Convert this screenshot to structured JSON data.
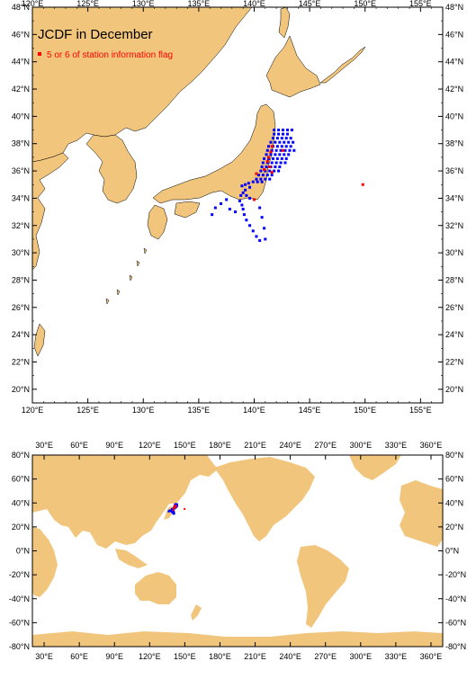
{
  "top_map": {
    "title": "JCDF in December",
    "legend_label": "5 or 6 of station information flag",
    "lon_ticks": [
      "120°E",
      "125°E",
      "130°E",
      "135°E",
      "140°E",
      "145°E",
      "150°E",
      "155°E"
    ],
    "lat_ticks": [
      "20°N",
      "22°N",
      "24°N",
      "26°N",
      "28°N",
      "30°N",
      "32°N",
      "34°N",
      "36°N",
      "38°N",
      "40°N",
      "42°N",
      "44°N",
      "46°N",
      "48°N"
    ],
    "lon_range": [
      120,
      157
    ],
    "lat_range": [
      19,
      48
    ]
  },
  "bottom_map": {
    "lon_ticks": [
      "30°E",
      "60°E",
      "90°E",
      "120°E",
      "150°E",
      "180°E",
      "210°E",
      "240°E",
      "270°E",
      "300°E",
      "330°E",
      "360°E"
    ],
    "lat_ticks": [
      "-80°N",
      "-60°N",
      "-40°N",
      "-20°N",
      "0°N",
      "20°N",
      "40°N",
      "60°N",
      "80°N"
    ],
    "lon_range": [
      20,
      370
    ],
    "lat_range": [
      -80,
      80
    ]
  },
  "colors": {
    "land": "#f2c57c",
    "station": "#0000ff",
    "flagged": "#ff0000"
  },
  "stations": [
    [
      141.8,
      39.0
    ],
    [
      142.2,
      39.0
    ],
    [
      142.6,
      39.0
    ],
    [
      143.0,
      39.0
    ],
    [
      143.4,
      39.0
    ],
    [
      141.8,
      38.7
    ],
    [
      142.2,
      38.7
    ],
    [
      142.6,
      38.7
    ],
    [
      143.0,
      38.7
    ],
    [
      141.7,
      38.4
    ],
    [
      142.1,
      38.4
    ],
    [
      142.5,
      38.4
    ],
    [
      142.9,
      38.4
    ],
    [
      143.3,
      38.4
    ],
    [
      141.5,
      38.1
    ],
    [
      141.9,
      38.1
    ],
    [
      142.3,
      38.1
    ],
    [
      142.7,
      38.1
    ],
    [
      143.1,
      38.1
    ],
    [
      143.5,
      38.1
    ],
    [
      141.3,
      37.8
    ],
    [
      141.7,
      37.8
    ],
    [
      142.1,
      37.8
    ],
    [
      142.5,
      37.8
    ],
    [
      142.9,
      37.8
    ],
    [
      143.3,
      37.8
    ],
    [
      141.2,
      37.5
    ],
    [
      141.6,
      37.5
    ],
    [
      142.0,
      37.5
    ],
    [
      142.4,
      37.5
    ],
    [
      142.8,
      37.5
    ],
    [
      143.2,
      37.5
    ],
    [
      143.6,
      37.5
    ],
    [
      141.1,
      37.2
    ],
    [
      141.5,
      37.2
    ],
    [
      141.9,
      37.2
    ],
    [
      142.3,
      37.2
    ],
    [
      142.7,
      37.2
    ],
    [
      143.1,
      37.2
    ],
    [
      140.9,
      36.9
    ],
    [
      141.3,
      36.9
    ],
    [
      141.7,
      36.9
    ],
    [
      142.1,
      36.9
    ],
    [
      142.5,
      36.9
    ],
    [
      142.9,
      36.9
    ],
    [
      140.8,
      36.6
    ],
    [
      141.2,
      36.6
    ],
    [
      141.6,
      36.6
    ],
    [
      142.0,
      36.6
    ],
    [
      142.4,
      36.6
    ],
    [
      142.8,
      36.6
    ],
    [
      140.7,
      36.3
    ],
    [
      141.1,
      36.3
    ],
    [
      141.5,
      36.3
    ],
    [
      141.9,
      36.3
    ],
    [
      142.3,
      36.3
    ],
    [
      140.6,
      36.0
    ],
    [
      141.0,
      36.0
    ],
    [
      141.4,
      36.0
    ],
    [
      141.8,
      36.0
    ],
    [
      142.2,
      36.0
    ],
    [
      140.4,
      35.7
    ],
    [
      140.8,
      35.7
    ],
    [
      141.2,
      35.7
    ],
    [
      141.6,
      35.7
    ],
    [
      140.2,
      35.4
    ],
    [
      140.6,
      35.4
    ],
    [
      141.0,
      35.4
    ],
    [
      141.4,
      35.4
    ],
    [
      139.9,
      35.2
    ],
    [
      140.3,
      35.2
    ],
    [
      140.7,
      35.2
    ],
    [
      139.5,
      35.1
    ],
    [
      139.2,
      35.0
    ],
    [
      138.9,
      34.9
    ],
    [
      139.6,
      34.8
    ],
    [
      139.2,
      34.6
    ],
    [
      139.0,
      34.4
    ],
    [
      138.8,
      34.2
    ],
    [
      139.3,
      34.2
    ],
    [
      139.6,
      34.0
    ],
    [
      138.7,
      33.8
    ],
    [
      138.9,
      33.5
    ],
    [
      139.0,
      33.2
    ],
    [
      139.1,
      32.8
    ],
    [
      139.3,
      32.4
    ],
    [
      139.6,
      32.0
    ],
    [
      139.9,
      31.6
    ],
    [
      140.2,
      31.2
    ],
    [
      140.5,
      30.9
    ],
    [
      136.5,
      33.3
    ],
    [
      137.0,
      33.6
    ],
    [
      137.5,
      33.9
    ],
    [
      136.2,
      32.8
    ],
    [
      137.8,
      33.2
    ],
    [
      138.3,
      33.0
    ],
    [
      141.0,
      31.0
    ],
    [
      140.9,
      31.8
    ],
    [
      140.7,
      32.6
    ],
    [
      140.5,
      33.3
    ]
  ],
  "flagged_stations": [
    [
      141.6,
      37.8
    ],
    [
      141.5,
      37.4
    ],
    [
      141.3,
      37.0
    ],
    [
      141.2,
      36.7
    ],
    [
      141.4,
      36.3
    ],
    [
      140.9,
      36.1
    ],
    [
      141.6,
      35.9
    ],
    [
      140.2,
      35.8
    ],
    [
      140.0,
      33.9
    ],
    [
      149.8,
      35.0
    ],
    [
      142.6,
      37.5
    ]
  ]
}
